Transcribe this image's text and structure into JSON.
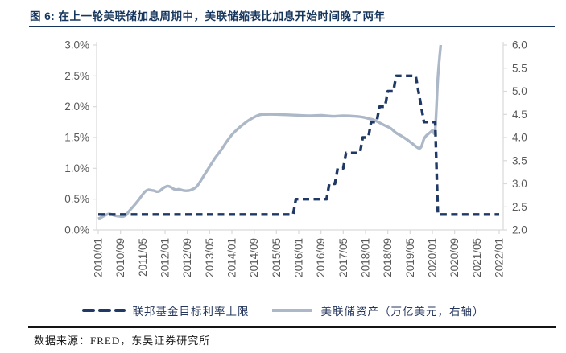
{
  "title": "图 6:  在上一轮美联储加息周期中，美联储缩表比加息开始时间晚了两年",
  "footer": {
    "source_text": "数据来源：FRED，东吴证券研究所"
  },
  "colors": {
    "title_navy": "#17365d",
    "rate_line": "#1f3864",
    "assets_line": "#acb8c8",
    "axis_line": "#d9d9d9",
    "tick_text": "#595959",
    "legend_text": "#24365c",
    "rule_top": "#17365d",
    "rule_bottom": "#141414"
  },
  "chart_data": {
    "type": "line",
    "title": "图 6: 在上一轮美联储加息周期中，美联储缩表比加息开始时间晚了两年",
    "xlabel": "",
    "ylabel": "",
    "grid": false,
    "legend_position": "bottom",
    "x_tick_labels": [
      "2010/01",
      "2010/09",
      "2011/05",
      "2012/01",
      "2012/09",
      "2013/05",
      "2014/01",
      "2014/09",
      "2015/05",
      "2016/01",
      "2016/09",
      "2017/05",
      "2018/01",
      "2018/09",
      "2019/05",
      "2020/01",
      "2020/09",
      "2021/05",
      "2022/01"
    ],
    "x_range": [
      "2010/01",
      "2022/01"
    ],
    "left_axis": {
      "min": 0.0,
      "max": 3.0,
      "unit": "%",
      "tick_labels": [
        "0.0%",
        "0.5%",
        "1.0%",
        "1.5%",
        "2.0%",
        "2.5%",
        "3.0%"
      ]
    },
    "right_axis": {
      "min": 2.0,
      "max": 6.0,
      "unit": "万亿美元",
      "tick_labels": [
        "2.0",
        "2.5",
        "3.0",
        "3.5",
        "4.0",
        "4.5",
        "5.0",
        "5.5",
        "6.0"
      ]
    },
    "series": [
      {
        "name": "联邦基金目标利率上限",
        "axis": "left",
        "line_style": "dashed",
        "smooth": false,
        "interp": "step",
        "end_x": "2022/01",
        "points": [
          [
            "2010/01",
            0.25
          ],
          [
            "2015/12",
            0.5
          ],
          [
            "2016/12",
            0.75
          ],
          [
            "2017/03",
            1.0
          ],
          [
            "2017/06",
            1.25
          ],
          [
            "2017/12",
            1.5
          ],
          [
            "2018/03",
            1.75
          ],
          [
            "2018/06",
            2.0
          ],
          [
            "2018/09",
            2.25
          ],
          [
            "2018/12",
            2.5
          ],
          [
            "2019/08",
            2.25
          ],
          [
            "2019/09",
            2.0
          ],
          [
            "2019/10",
            1.75
          ],
          [
            "2020/03",
            0.25
          ]
        ]
      },
      {
        "name": "美联储资产（万亿美元，右轴）",
        "axis": "right",
        "line_style": "solid",
        "smooth": true,
        "interp": "linear",
        "points": [
          [
            "2010/01",
            2.24
          ],
          [
            "2010/02",
            2.27
          ],
          [
            "2010/03",
            2.3
          ],
          [
            "2010/04",
            2.33
          ],
          [
            "2010/05",
            2.35
          ],
          [
            "2010/06",
            2.33
          ],
          [
            "2010/07",
            2.31
          ],
          [
            "2010/08",
            2.3
          ],
          [
            "2010/09",
            2.29
          ],
          [
            "2010/10",
            2.29
          ],
          [
            "2010/11",
            2.32
          ],
          [
            "2010/12",
            2.4
          ],
          [
            "2011/01",
            2.47
          ],
          [
            "2011/02",
            2.54
          ],
          [
            "2011/03",
            2.61
          ],
          [
            "2011/04",
            2.69
          ],
          [
            "2011/05",
            2.77
          ],
          [
            "2011/06",
            2.84
          ],
          [
            "2011/07",
            2.87
          ],
          [
            "2011/08",
            2.86
          ],
          [
            "2011/09",
            2.85
          ],
          [
            "2011/10",
            2.83
          ],
          [
            "2011/11",
            2.84
          ],
          [
            "2011/12",
            2.89
          ],
          [
            "2012/01",
            2.93
          ],
          [
            "2012/02",
            2.95
          ],
          [
            "2012/03",
            2.93
          ],
          [
            "2012/04",
            2.89
          ],
          [
            "2012/05",
            2.87
          ],
          [
            "2012/06",
            2.88
          ],
          [
            "2012/08",
            2.85
          ],
          [
            "2012/10",
            2.86
          ],
          [
            "2012/12",
            2.92
          ],
          [
            "2013/01",
            2.99
          ],
          [
            "2013/03",
            3.18
          ],
          [
            "2013/05",
            3.37
          ],
          [
            "2013/07",
            3.56
          ],
          [
            "2013/09",
            3.72
          ],
          [
            "2013/11",
            3.9
          ],
          [
            "2014/01",
            4.06
          ],
          [
            "2014/03",
            4.18
          ],
          [
            "2014/05",
            4.28
          ],
          [
            "2014/07",
            4.37
          ],
          [
            "2014/09",
            4.44
          ],
          [
            "2014/11",
            4.49
          ],
          [
            "2015/01",
            4.5
          ],
          [
            "2015/05",
            4.5
          ],
          [
            "2015/09",
            4.49
          ],
          [
            "2016/01",
            4.48
          ],
          [
            "2016/05",
            4.47
          ],
          [
            "2016/09",
            4.48
          ],
          [
            "2017/01",
            4.46
          ],
          [
            "2017/05",
            4.47
          ],
          [
            "2017/09",
            4.46
          ],
          [
            "2017/12",
            4.44
          ],
          [
            "2018/02",
            4.41
          ],
          [
            "2018/04",
            4.38
          ],
          [
            "2018/06",
            4.32
          ],
          [
            "2018/08",
            4.26
          ],
          [
            "2018/10",
            4.2
          ],
          [
            "2018/12",
            4.1
          ],
          [
            "2019/02",
            4.03
          ],
          [
            "2019/04",
            3.95
          ],
          [
            "2019/06",
            3.86
          ],
          [
            "2019/08",
            3.77
          ],
          [
            "2019/09",
            3.8
          ],
          [
            "2019/10",
            3.97
          ],
          [
            "2019/11",
            4.05
          ],
          [
            "2019/12",
            4.1
          ],
          [
            "2020/01",
            4.15
          ],
          [
            "2020/02",
            4.17
          ],
          [
            "2020/03",
            5.3
          ],
          [
            "2020/04",
            6.0
          ]
        ]
      }
    ]
  }
}
